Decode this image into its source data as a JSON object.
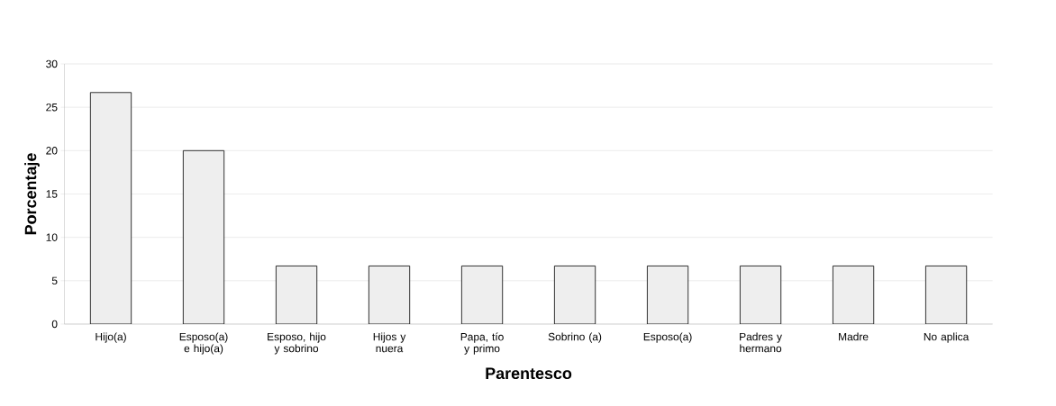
{
  "chart_data": {
    "type": "bar",
    "xlabel": "Parentesco",
    "ylabel": "Porcentaje",
    "categories": [
      "Hijo(a)",
      "Esposo(a) e hijo(a)",
      "Esposo, hijo y sobrino",
      "Hijos y nuera",
      "Papa, tío y primo",
      "Sobrino (a)",
      "Esposo(a)",
      "Padres y hermano",
      "Madre",
      "No aplica"
    ],
    "values": [
      26.7,
      20,
      6.7,
      6.7,
      6.7,
      6.7,
      6.7,
      6.7,
      6.7,
      6.7
    ],
    "color": "#eeeeee",
    "ylim": [
      0,
      30
    ],
    "yticks": [
      0,
      5,
      10,
      15,
      20,
      25,
      30
    ],
    "grid": "y"
  }
}
